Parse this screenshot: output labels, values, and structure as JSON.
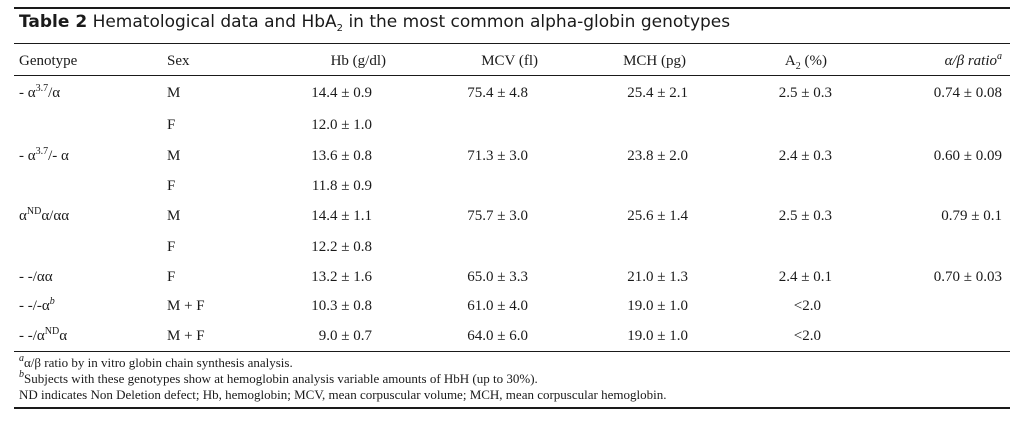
{
  "caption": {
    "label": "Table 2",
    "title_pre": "Hematological data and HbA",
    "title_sub": "2",
    "title_post": " in the most common alpha-globin genotypes"
  },
  "headers": {
    "genotype": "Genotype",
    "sex": "Sex",
    "hb": "Hb (g/dl)",
    "mcv": "MCV (fl)",
    "mch": "MCH (pg)",
    "a2_pre": "A",
    "a2_sub": "2",
    "a2_post": " (%)",
    "ratio": "α/β ratio",
    "ratio_note": "a"
  },
  "rows": [
    {
      "g_pre": "- α",
      "g_sup": "3.7",
      "g_post": "/α",
      "sex": "M",
      "hb": "14.4 ± 0.9",
      "mcv": "75.4 ± 4.8",
      "mch": "25.4 ± 2.1",
      "a2": "2.5 ± 0.3",
      "ratio": "0.74 ± 0.08"
    },
    {
      "sex": "F",
      "hb": "12.0 ± 1.0"
    },
    {
      "g_pre": "- α",
      "g_sup": "3.7",
      "g_post": "/- α",
      "sex": "M",
      "hb": "13.6 ± 0.8",
      "mcv": "71.3 ± 3.0",
      "mch": "23.8 ± 2.0",
      "a2": "2.4 ± 0.3",
      "ratio": "0.60 ± 0.09"
    },
    {
      "sex": "F",
      "hb": "11.8 ± 0.9"
    },
    {
      "g_pre": "α",
      "g_sup": "ND",
      "g_post": "α/αα",
      "sex": "M",
      "hb": "14.4 ± 1.1",
      "mcv": "75.7 ± 3.0",
      "mch": "25.6 ± 1.4",
      "a2": "2.5 ± 0.3",
      "ratio": "0.79 ± 0.1"
    },
    {
      "sex": "F",
      "hb": "12.2 ± 0.8"
    },
    {
      "g_pre": "- -/αα",
      "sex": "F",
      "hb": "13.2 ± 1.6",
      "mcv": "65.0 ± 3.3",
      "mch": "21.0 ± 1.3",
      "a2": "2.4 ± 0.1",
      "ratio": "0.70 ± 0.03"
    },
    {
      "g_pre": "- -/-α",
      "g_sup": "b",
      "sex": "M + F",
      "hb": "10.3 ± 0.8",
      "mcv": "61.0 ± 4.0",
      "mch": "19.0 ± 1.0",
      "a2": "<2.0"
    },
    {
      "g_pre": "- -/α",
      "g_sup": "ND",
      "g_post": "α",
      "sex": "M + F",
      "hb": "9.0 ± 0.7",
      "mcv": "64.0 ± 6.0",
      "mch": "19.0 ± 1.0",
      "a2": "<2.0"
    }
  ],
  "footnotes": {
    "a_mark": "a",
    "a_text": "α/β ratio by in vitro globin chain synthesis analysis.",
    "b_mark": "b",
    "b_text": "Subjects with these genotypes show at hemoglobin analysis variable amounts of HbH (up to 30%).",
    "abbrev": "ND indicates Non Deletion defect; Hb, hemoglobin; MCV, mean corpuscular volume; MCH, mean corpuscular hemoglobin."
  }
}
